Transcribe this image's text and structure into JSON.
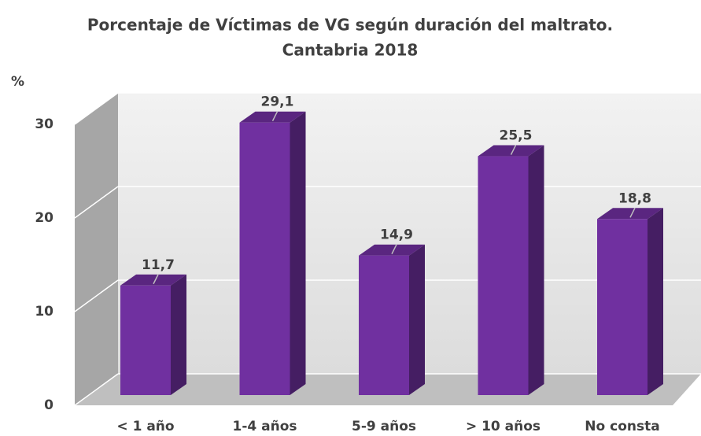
{
  "chart_data": {
    "type": "bar3d",
    "title": "Porcentaje de Víctimas de VG según duración del maltrato.",
    "subtitle": "Cantabria 2018",
    "y_label": "%",
    "categories": [
      "< 1 año",
      "1-4 años",
      "5-9 años",
      "> 10 años",
      "No consta"
    ],
    "values": [
      11.7,
      29.1,
      14.9,
      25.5,
      18.8
    ],
    "value_labels": [
      "11,7",
      "29,1",
      "14,9",
      "25,5",
      "18,8"
    ],
    "color": "#7030a0",
    "ylim": [
      0,
      30
    ],
    "yticks": [
      0,
      10,
      20,
      30
    ],
    "grid": true
  }
}
